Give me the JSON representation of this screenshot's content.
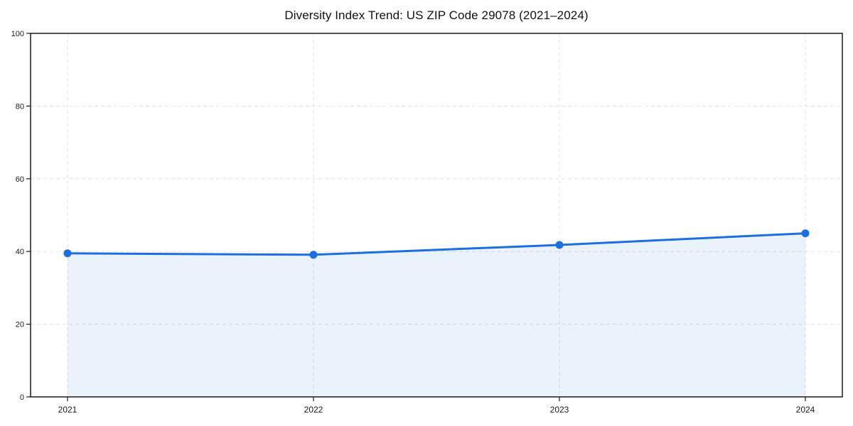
{
  "figure": {
    "background": "#ffffff"
  },
  "chart_data": {
    "type": "line",
    "title": "Diversity Index Trend: US ZIP Code 29078 (2021–2024)",
    "categories": [
      "2021",
      "2022",
      "2023",
      "2024"
    ],
    "series": [
      {
        "name": "Diversity Index",
        "values": [
          39.5,
          39.1,
          41.8,
          45.0
        ]
      }
    ],
    "xlabel": "",
    "ylabel": "",
    "ylim": [
      0,
      100
    ],
    "yticks": [
      0,
      20,
      40,
      60,
      80,
      100
    ],
    "grid": true,
    "grid_style": "dashed",
    "area_fill": true,
    "legend": "none",
    "marker": "circle",
    "colors": {
      "line": "#1b6fe0",
      "marker": "#1b6fe0",
      "area": "rgba(27, 111, 224, 0.09)",
      "grid": "#e2e2e2",
      "spine": "#1a1a1a",
      "tick_label": "#1a1a1a",
      "title": "#111111"
    }
  }
}
